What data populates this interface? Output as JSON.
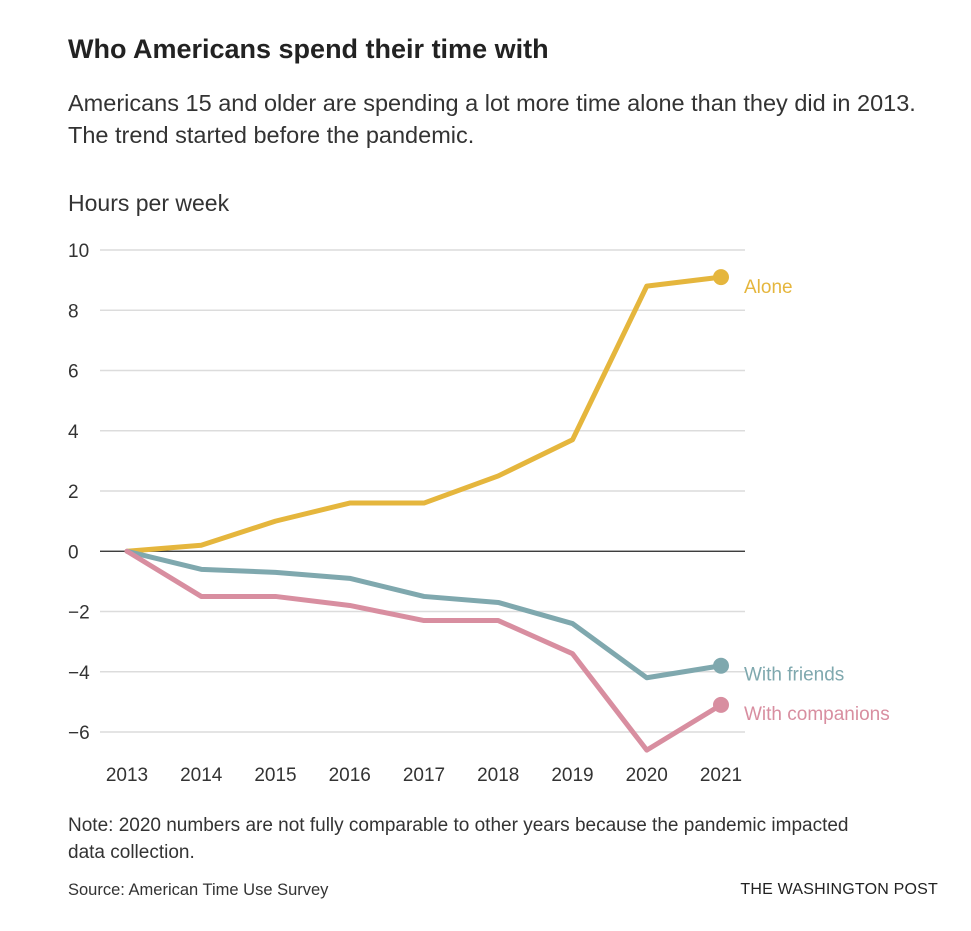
{
  "chart_data": {
    "type": "line",
    "title": "Who Americans spend their time with",
    "subtitle": "Americans 15 and older are spending a lot more time alone than they did in 2013. The trend started before the pandemic.",
    "ylabel": "Hours per week",
    "xlabel": "",
    "x": [
      2013,
      2014,
      2015,
      2016,
      2017,
      2018,
      2019,
      2020,
      2021
    ],
    "x_tick_labels": [
      "2013",
      "2014",
      "2015",
      "2016",
      "2017",
      "2018",
      "2019",
      "2020",
      "2021"
    ],
    "y_ticks": [
      10,
      8,
      6,
      4,
      2,
      0,
      -2,
      -4,
      -6
    ],
    "y_tick_labels": [
      "10",
      "8",
      "6",
      "4",
      "2",
      "0",
      "−2",
      "−4",
      "−6"
    ],
    "ylim": [
      -7,
      10
    ],
    "grid": true,
    "legend": "direct labels at line ends",
    "series": [
      {
        "name": "Alone",
        "color": "#e5b63d",
        "values": [
          0,
          0.2,
          1.0,
          1.6,
          1.6,
          2.5,
          3.7,
          8.8,
          9.1
        ]
      },
      {
        "name": "With friends",
        "color": "#7fa8ae",
        "values": [
          0,
          -0.6,
          -0.7,
          -0.9,
          -1.5,
          -1.7,
          -2.4,
          -4.2,
          -3.8
        ]
      },
      {
        "name": "With companions",
        "color": "#d88ea0",
        "values": [
          0,
          -1.5,
          -1.5,
          -1.8,
          -2.3,
          -2.3,
          -3.4,
          -6.6,
          -5.1
        ]
      }
    ]
  },
  "footer": {
    "note": "Note: 2020 numbers are not fully comparable to other years because the pandemic impacted data collection.",
    "source": "Source: American Time Use Survey",
    "credit": "THE WASHINGTON POST"
  }
}
